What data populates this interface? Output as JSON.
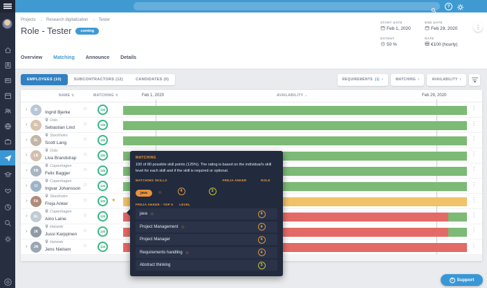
{
  "colors": {
    "accent": "#3a97d6",
    "available": "#7cba76",
    "partial": "#f0c26a",
    "unavailable": "#e36a66",
    "score_ring": "#35b683",
    "tooltip_accent": "#ef9b3d"
  },
  "breadcrumb": {
    "separator": "→",
    "items": [
      "Projects",
      "Research digitalization",
      "Tester"
    ]
  },
  "header": {
    "title": "Role - Tester",
    "status_badge": "coming",
    "details": {
      "start_date_label": "START DATE",
      "start_date_value": "Feb 1, 2020",
      "end_date_label": "END DATE",
      "end_date_value": "Feb 29, 2020",
      "extent_label": "EXTENT",
      "extent_value": "50 %",
      "rate_label": "RATE",
      "rate_value": "€100 (hourly)"
    }
  },
  "tabs": [
    "Overview",
    "Matching",
    "Announce",
    "Details"
  ],
  "subtabs": [
    "EMPLOYEES (10)",
    "SUBCONTRACTORS (12)",
    "CANDIDATES (0)"
  ],
  "filter_buttons": {
    "requirements_label": "REQUIREMENTS",
    "requirements_count": "(1)",
    "matching_label": "MATCHING",
    "availability_label": "AVAILABILITY"
  },
  "table": {
    "name_col": "NAME",
    "matching_col": "MATCHING",
    "availability_col": "AVAILABILITY",
    "timeline_start": "Feb 1, 2020",
    "timeline_end": "Feb 29, 2020",
    "rows": [
      {
        "name": "Ingrid Bjerke",
        "location": "Oslo",
        "score": "125",
        "avatar_color": "#b9c7d4",
        "highlighted": false,
        "bars": [
          {
            "color": "available",
            "from": 0,
            "to": 100
          }
        ]
      },
      {
        "name": "Sebastian Lind",
        "location": "Stockholm",
        "score": "125",
        "avatar_color": "#d8c3ae",
        "highlighted": false,
        "bars": [
          {
            "color": "available",
            "from": 0,
            "to": 100
          }
        ]
      },
      {
        "name": "Scott Lang",
        "location": "Oslo",
        "score": "125",
        "avatar_color": "#c4b5a5",
        "highlighted": false,
        "bars": [
          {
            "color": "available",
            "from": 0,
            "to": 100
          }
        ]
      },
      {
        "name": "Liva Brandstrap",
        "location": "Copenhagen",
        "score": "150",
        "avatar_color": "#d3bfae",
        "highlighted": false,
        "bars": [
          {
            "color": "available",
            "from": 0,
            "to": 100
          }
        ]
      },
      {
        "name": "Felix Bagger",
        "location": "Copenhagen",
        "score": "125",
        "avatar_color": "#a8b4bf",
        "highlighted": false,
        "bars": [
          {
            "color": "available",
            "from": 0,
            "to": 100
          }
        ]
      },
      {
        "name": "Ingvar Johansson",
        "location": "Stockholm",
        "score": "125",
        "avatar_color": "#9db3c8",
        "highlighted": false,
        "bars": [
          {
            "color": "available",
            "from": 0,
            "to": 100
          }
        ]
      },
      {
        "name": "Freja Anker",
        "location": "Copenhagen",
        "score": "125",
        "avatar_color": "#b08a7a",
        "highlighted": true,
        "bars": [
          {
            "color": "partial",
            "from": 0,
            "to": 100
          }
        ]
      },
      {
        "name": "Aino Laine",
        "location": "Helsinki",
        "score": "125",
        "avatar_color": "#c2cbd4",
        "highlighted": false,
        "bars": [
          {
            "color": "unavailable",
            "from": 0,
            "to": 94.5
          },
          {
            "color": "available",
            "from": 94.5,
            "to": 100
          }
        ]
      },
      {
        "name": "Jussi Karppinen",
        "location": "Helsinki",
        "score": "125",
        "avatar_color": "#8f9aa6",
        "highlighted": false,
        "bars": [
          {
            "color": "unavailable",
            "from": 0,
            "to": 94.5
          },
          {
            "color": "available",
            "from": 94.5,
            "to": 100
          }
        ]
      },
      {
        "name": "Jens Nielsen",
        "location": "Copenhagen",
        "score": "125",
        "avatar_color": "#9aa7b3",
        "highlighted": false,
        "bars": [
          {
            "color": "unavailable",
            "from": 0,
            "to": 100
          }
        ]
      }
    ]
  },
  "tooltip": {
    "title": "MATCHING",
    "body": "100 of 80 possible skill points (125%). The rating is based on the individual's skill level for each skill and if the skill is required or optional.",
    "matching_skills_label": "MATCHING SKILLS",
    "person_col": "FREJA ANKER",
    "role_col": "ROLE",
    "skill": {
      "name": "java",
      "person_level": "4",
      "role_level": "3"
    },
    "top5_label": "FREJA ANKER - TOP 5",
    "level_col": "LEVEL",
    "top5": [
      {
        "name": "java",
        "starred": true,
        "level": "4"
      },
      {
        "name": "Project Management",
        "starred": true,
        "level": "4"
      },
      {
        "name": "Project Manager",
        "starred": false,
        "level": "4"
      },
      {
        "name": "Requirements handling",
        "starred": true,
        "level": "4"
      },
      {
        "name": "Abstract thinking",
        "starred": false,
        "level": "3"
      }
    ]
  },
  "support_label": "Support"
}
